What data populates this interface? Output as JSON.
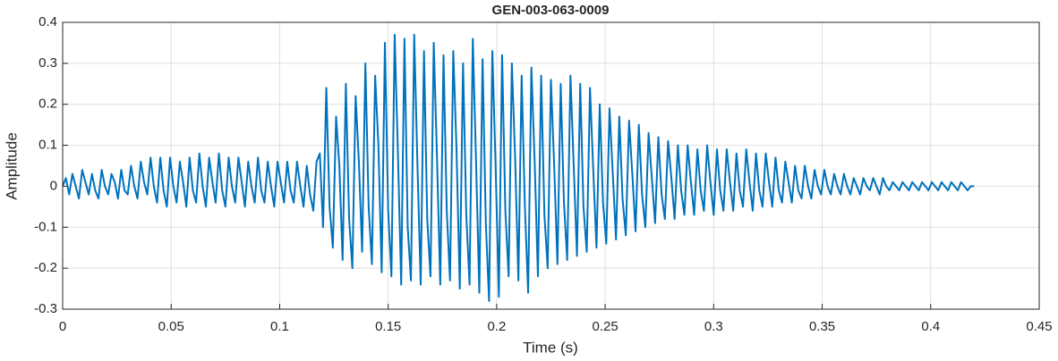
{
  "chart_data": {
    "type": "line",
    "title": "GEN-003-063-0009",
    "xlabel": "Time (s)",
    "ylabel": "Amplitude",
    "color": "#0072bd",
    "grid": true,
    "xlim": [
      0,
      0.45
    ],
    "xticks": [
      0,
      0.05,
      0.1,
      0.15,
      0.2,
      0.25,
      0.3,
      0.35,
      0.4,
      0.45
    ],
    "ylim": [
      -0.3,
      0.4
    ],
    "yticks": [
      -0.3,
      -0.2,
      -0.1,
      0,
      0.1,
      0.2,
      0.3,
      0.4
    ],
    "x": [
      0,
      0.0015,
      0.003,
      0.0045,
      0.006,
      0.0075,
      0.009,
      0.0105,
      0.012,
      0.0135,
      0.015,
      0.0165,
      0.018,
      0.0195,
      0.021,
      0.0225,
      0.024,
      0.0255,
      0.027,
      0.0285,
      0.03,
      0.0315,
      0.033,
      0.0345,
      0.036,
      0.0375,
      0.039,
      0.0405,
      0.042,
      0.0435,
      0.045,
      0.0465,
      0.048,
      0.0495,
      0.051,
      0.0525,
      0.054,
      0.0555,
      0.057,
      0.0585,
      0.06,
      0.0615,
      0.063,
      0.0645,
      0.066,
      0.0675,
      0.069,
      0.0705,
      0.072,
      0.0735,
      0.075,
      0.0765,
      0.078,
      0.0795,
      0.081,
      0.0825,
      0.084,
      0.0855,
      0.087,
      0.0885,
      0.09,
      0.0915,
      0.093,
      0.0945,
      0.096,
      0.0975,
      0.099,
      0.1005,
      0.102,
      0.1035,
      0.105,
      0.1065,
      0.108,
      0.1095,
      0.111,
      0.1125,
      0.114,
      0.1155,
      0.117,
      0.1185,
      0.12,
      0.1215,
      0.123,
      0.1245,
      0.126,
      0.1275,
      0.129,
      0.1305,
      0.132,
      0.1335,
      0.135,
      0.1365,
      0.138,
      0.1395,
      0.141,
      0.1425,
      0.144,
      0.1455,
      0.147,
      0.1485,
      0.15,
      0.1515,
      0.153,
      0.1545,
      0.156,
      0.1575,
      0.159,
      0.1605,
      0.162,
      0.1635,
      0.165,
      0.1665,
      0.168,
      0.1695,
      0.171,
      0.1725,
      0.174,
      0.1755,
      0.177,
      0.1785,
      0.18,
      0.1815,
      0.183,
      0.1845,
      0.186,
      0.1875,
      0.189,
      0.1905,
      0.192,
      0.1935,
      0.195,
      0.1965,
      0.198,
      0.1995,
      0.201,
      0.2025,
      0.204,
      0.2055,
      0.207,
      0.2085,
      0.21,
      0.2115,
      0.213,
      0.2145,
      0.216,
      0.2175,
      0.219,
      0.2205,
      0.222,
      0.2235,
      0.225,
      0.2265,
      0.228,
      0.2295,
      0.231,
      0.2325,
      0.234,
      0.2355,
      0.237,
      0.2385,
      0.24,
      0.2415,
      0.243,
      0.2445,
      0.246,
      0.2475,
      0.249,
      0.2505,
      0.252,
      0.2535,
      0.255,
      0.2565,
      0.258,
      0.2595,
      0.261,
      0.2625,
      0.264,
      0.2655,
      0.267,
      0.2685,
      0.27,
      0.2715,
      0.273,
      0.2745,
      0.276,
      0.2775,
      0.279,
      0.2805,
      0.282,
      0.2835,
      0.285,
      0.2865,
      0.288,
      0.2895,
      0.291,
      0.2925,
      0.294,
      0.2955,
      0.297,
      0.2985,
      0.3,
      0.3015,
      0.303,
      0.3045,
      0.306,
      0.3075,
      0.309,
      0.3105,
      0.312,
      0.3135,
      0.315,
      0.3165,
      0.318,
      0.3195,
      0.321,
      0.3225,
      0.324,
      0.3255,
      0.327,
      0.3285,
      0.33,
      0.3315,
      0.333,
      0.3345,
      0.336,
      0.3375,
      0.339,
      0.3405,
      0.342,
      0.3435,
      0.345,
      0.3465,
      0.348,
      0.3495,
      0.351,
      0.3525,
      0.354,
      0.3555,
      0.357,
      0.3585,
      0.36,
      0.3615,
      0.363,
      0.3645,
      0.366,
      0.3675,
      0.369,
      0.3705,
      0.372,
      0.3735,
      0.375,
      0.3765,
      0.378,
      0.3795,
      0.381,
      0.3825,
      0.384,
      0.3855,
      0.387,
      0.3885,
      0.39,
      0.3915,
      0.393,
      0.3945,
      0.396,
      0.3975,
      0.399,
      0.4005,
      0.402,
      0.4035,
      0.405,
      0.4065,
      0.408,
      0.4095,
      0.411,
      0.4125,
      0.414,
      0.4155,
      0.417,
      0.4185,
      0.42
    ],
    "values": [
      0,
      0.02,
      -0.02,
      0.03,
      0,
      -0.03,
      0.04,
      0.01,
      -0.02,
      0.03,
      -0.01,
      -0.03,
      0.04,
      0,
      -0.02,
      0.03,
      0.01,
      -0.03,
      0.04,
      -0.01,
      -0.02,
      0.05,
      0,
      -0.03,
      0.06,
      0.01,
      -0.02,
      0.07,
      0,
      -0.04,
      0.07,
      -0.01,
      -0.05,
      0.07,
      0,
      -0.04,
      0.06,
      0.01,
      -0.05,
      0.07,
      -0.01,
      -0.04,
      0.08,
      0,
      -0.05,
      0.07,
      0.01,
      -0.04,
      0.08,
      -0.01,
      -0.05,
      0.07,
      0,
      -0.04,
      0.07,
      0.01,
      -0.05,
      0.06,
      0,
      -0.04,
      0.07,
      -0.01,
      -0.04,
      0.06,
      0,
      -0.05,
      0.06,
      0.01,
      -0.04,
      0.06,
      -0.01,
      -0.04,
      0.06,
      0,
      -0.05,
      0.05,
      -0.02,
      -0.06,
      0.06,
      0.08,
      -0.1,
      0.24,
      -0.05,
      -0.15,
      0.17,
      0.05,
      -0.18,
      0.25,
      -0.08,
      -0.2,
      0.22,
      0.06,
      -0.16,
      0.3,
      -0.05,
      -0.19,
      0.27,
      0.1,
      -0.21,
      0.35,
      -0.06,
      -0.22,
      0.37,
      0.08,
      -0.24,
      0.36,
      -0.1,
      -0.23,
      0.37,
      0.05,
      -0.24,
      0.33,
      -0.08,
      -0.22,
      0.35,
      0.07,
      -0.24,
      0.32,
      -0.06,
      -0.23,
      0.33,
      0.09,
      -0.25,
      0.3,
      -0.07,
      -0.24,
      0.36,
      0.06,
      -0.26,
      0.31,
      -0.09,
      -0.28,
      0.33,
      0.05,
      -0.27,
      0.32,
      -0.06,
      -0.22,
      0.3,
      0.07,
      -0.23,
      0.27,
      -0.05,
      -0.26,
      0.29,
      0.06,
      -0.22,
      0.27,
      -0.07,
      -0.2,
      0.26,
      0.05,
      -0.19,
      0.25,
      -0.04,
      -0.18,
      0.27,
      0.05,
      -0.17,
      0.25,
      -0.05,
      -0.16,
      0.24,
      0.04,
      -0.15,
      0.2,
      -0.04,
      -0.14,
      0.19,
      0.03,
      -0.13,
      0.17,
      -0.03,
      -0.12,
      0.16,
      0.03,
      -0.11,
      0.15,
      -0.02,
      -0.1,
      0.13,
      0.02,
      -0.09,
      0.12,
      -0.02,
      -0.08,
      0.11,
      0.02,
      -0.08,
      0.1,
      -0.01,
      -0.07,
      0.1,
      0.01,
      -0.07,
      0.09,
      -0.01,
      -0.06,
      0.1,
      0.01,
      -0.07,
      0.09,
      -0.01,
      -0.06,
      0.09,
      0.01,
      -0.06,
      0.08,
      -0.01,
      -0.05,
      0.09,
      0.01,
      -0.06,
      0.08,
      -0.01,
      -0.05,
      0.08,
      0.01,
      -0.05,
      0.07,
      -0.01,
      -0.04,
      0.06,
      0.01,
      -0.04,
      0.05,
      -0.01,
      -0.03,
      0.05,
      0,
      -0.03,
      0.04,
      0,
      -0.02,
      0.04,
      0,
      -0.02,
      0.03,
      0,
      -0.02,
      0.03,
      0,
      -0.02,
      0.02,
      0,
      -0.02,
      0.02,
      0,
      -0.01,
      0.02,
      0,
      -0.02,
      0.02,
      0,
      -0.01,
      0.01,
      0,
      -0.01,
      0.01,
      0,
      -0.01,
      0.01,
      0,
      -0.01,
      0.01,
      0,
      -0.01,
      0.01,
      0,
      -0.01,
      0.01,
      0,
      -0.01,
      0.01,
      0,
      -0.01,
      0.01,
      0,
      -0.01,
      0,
      0
    ]
  }
}
